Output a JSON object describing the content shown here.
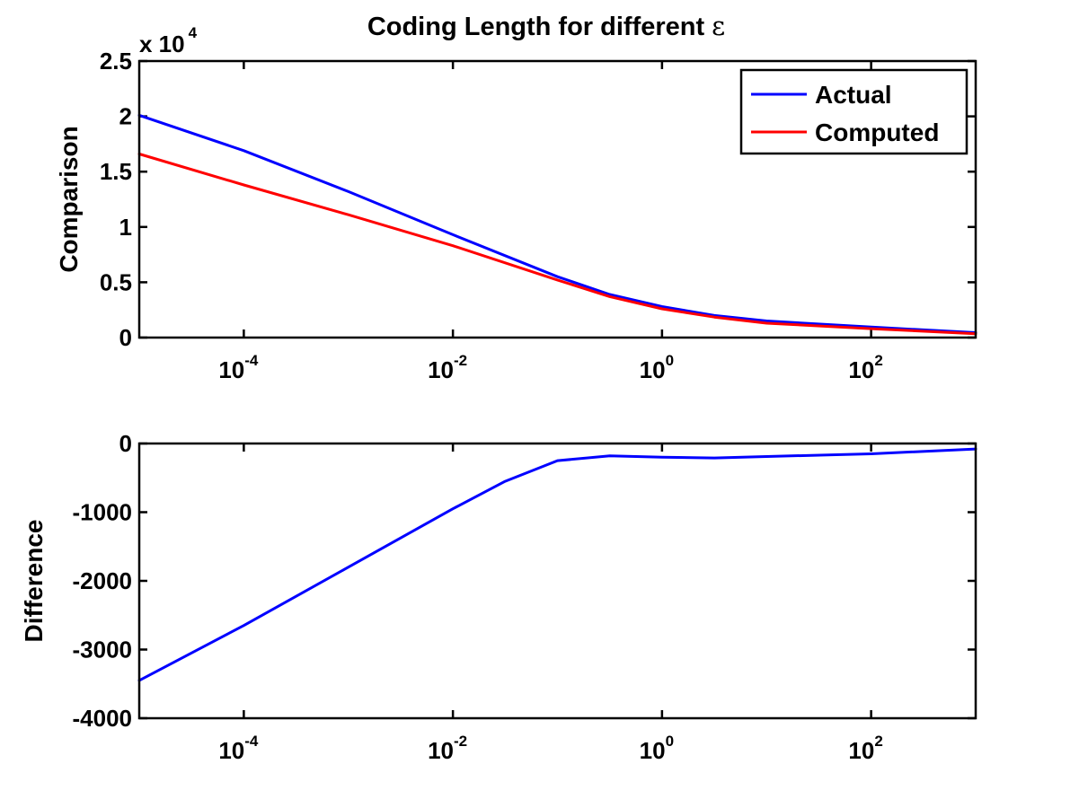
{
  "figure": {
    "title_prefix": "Coding Length for different",
    "title_symbol": "ε"
  },
  "colors": {
    "actual": "#0000ff",
    "computed": "#ff0000",
    "difference": "#0000ff"
  },
  "chart_data": [
    {
      "type": "line",
      "title": "Coding Length for different ε",
      "xlabel": "",
      "ylabel": "Comparison",
      "xscale": "log",
      "xlim_log10": [
        -5,
        3
      ],
      "ylim": [
        0,
        25000
      ],
      "y_exponent_label": "x 10",
      "y_exponent_power": "4",
      "yticks": [
        0,
        0.5,
        1,
        1.5,
        2,
        2.5
      ],
      "ytick_labels": [
        "0",
        "0.5",
        "1",
        "1.5",
        "2",
        "2.5"
      ],
      "xticks_log10": [
        -4,
        -2,
        0,
        2
      ],
      "xtick_labels": [
        {
          "base": "10",
          "exp": "-4"
        },
        {
          "base": "10",
          "exp": "-2"
        },
        {
          "base": "10",
          "exp": "0"
        },
        {
          "base": "10",
          "exp": "2"
        }
      ],
      "legend_position": "top-right",
      "grid": false,
      "x_log10": [
        -5,
        -4,
        -3,
        -2,
        -1,
        -0.5,
        0,
        0.5,
        1,
        2,
        3
      ],
      "series": [
        {
          "name": "Actual",
          "color": "#0000ff",
          "values": [
            20100,
            16900,
            13200,
            9300,
            5500,
            3900,
            2800,
            2000,
            1500,
            950,
            450
          ]
        },
        {
          "name": "Computed",
          "color": "#ff0000",
          "values": [
            16600,
            13800,
            11100,
            8300,
            5200,
            3700,
            2600,
            1850,
            1300,
            800,
            350
          ]
        }
      ]
    },
    {
      "type": "line",
      "xlabel": "",
      "ylabel": "Difference",
      "xscale": "log",
      "xlim_log10": [
        -5,
        3
      ],
      "ylim": [
        -4000,
        0
      ],
      "yticks": [
        -4000,
        -3000,
        -2000,
        -1000,
        0
      ],
      "ytick_labels": [
        "-4000",
        "-3000",
        "-2000",
        "-1000",
        "0"
      ],
      "xticks_log10": [
        -4,
        -2,
        0,
        2
      ],
      "xtick_labels": [
        {
          "base": "10",
          "exp": "-4"
        },
        {
          "base": "10",
          "exp": "-2"
        },
        {
          "base": "10",
          "exp": "0"
        },
        {
          "base": "10",
          "exp": "2"
        }
      ],
      "grid": false,
      "x_log10": [
        -5,
        -4,
        -3,
        -2,
        -1.5,
        -1,
        -0.5,
        0,
        0.5,
        1,
        2,
        3
      ],
      "series": [
        {
          "color": "#0000ff",
          "values": [
            -3450,
            -2650,
            -1800,
            -950,
            -550,
            -250,
            -180,
            -200,
            -210,
            -190,
            -150,
            -80
          ]
        }
      ]
    }
  ]
}
